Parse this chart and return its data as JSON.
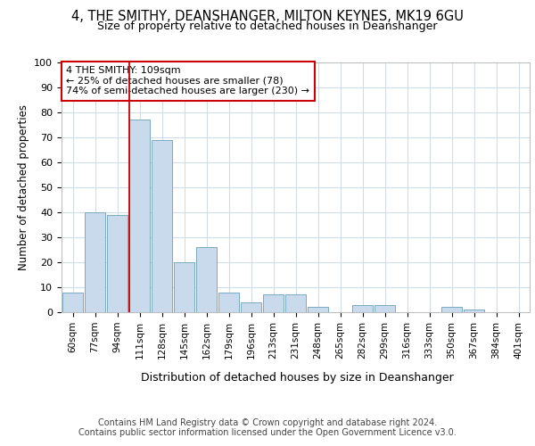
{
  "title_line1": "4, THE SMITHY, DEANSHANGER, MILTON KEYNES, MK19 6GU",
  "title_line2": "Size of property relative to detached houses in Deanshanger",
  "xlabel": "Distribution of detached houses by size in Deanshanger",
  "ylabel": "Number of detached properties",
  "categories": [
    "60sqm",
    "77sqm",
    "94sqm",
    "111sqm",
    "128sqm",
    "145sqm",
    "162sqm",
    "179sqm",
    "196sqm",
    "213sqm",
    "231sqm",
    "248sqm",
    "265sqm",
    "282sqm",
    "299sqm",
    "316sqm",
    "333sqm",
    "350sqm",
    "367sqm",
    "384sqm",
    "401sqm"
  ],
  "values": [
    8,
    40,
    39,
    77,
    69,
    20,
    26,
    8,
    4,
    7,
    7,
    2,
    0,
    3,
    3,
    0,
    0,
    2,
    1,
    0,
    0
  ],
  "bar_color": "#c8daeb",
  "bar_edge_color": "#7aaabf",
  "highlight_index": 3,
  "highlight_line_color": "#cc0000",
  "annotation_text": "4 THE SMITHY: 109sqm\n← 25% of detached houses are smaller (78)\n74% of semi-detached houses are larger (230) →",
  "annotation_box_color": "#ffffff",
  "annotation_box_edge": "#cc0000",
  "background_color": "#ffffff",
  "plot_background": "#ffffff",
  "grid_color": "#d0dce8",
  "footer_line1": "Contains HM Land Registry data © Crown copyright and database right 2024.",
  "footer_line2": "Contains public sector information licensed under the Open Government Licence v3.0.",
  "ylim": [
    0,
    100
  ],
  "yticks": [
    0,
    10,
    20,
    30,
    40,
    50,
    60,
    70,
    80,
    90,
    100
  ]
}
